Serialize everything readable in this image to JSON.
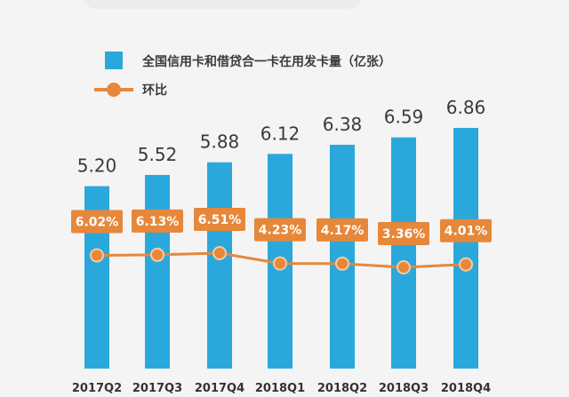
{
  "chart_data": {
    "type": "bar",
    "categories": [
      "2017Q2",
      "2017Q3",
      "2017Q4",
      "2018Q1",
      "2018Q2",
      "2018Q3",
      "2018Q4"
    ],
    "series": [
      {
        "name": "全国信用卡和借贷合一卡在用发卡量（亿张）",
        "type": "bar",
        "values": [
          5.2,
          5.52,
          5.88,
          6.12,
          6.38,
          6.59,
          6.86
        ],
        "labels": [
          "5.20",
          "5.52",
          "5.88",
          "6.12",
          "6.38",
          "6.59",
          "6.86"
        ],
        "color": "#2aa8dc"
      },
      {
        "name": "环比",
        "type": "line",
        "values": [
          6.02,
          6.13,
          6.51,
          4.23,
          4.17,
          3.36,
          4.01
        ],
        "labels": [
          "6.02%",
          "6.13%",
          "6.51%",
          "4.23%",
          "4.17%",
          "3.36%",
          "4.01%"
        ],
        "color": "#e6873a"
      }
    ],
    "legend_position": "top-left",
    "grid": false
  }
}
